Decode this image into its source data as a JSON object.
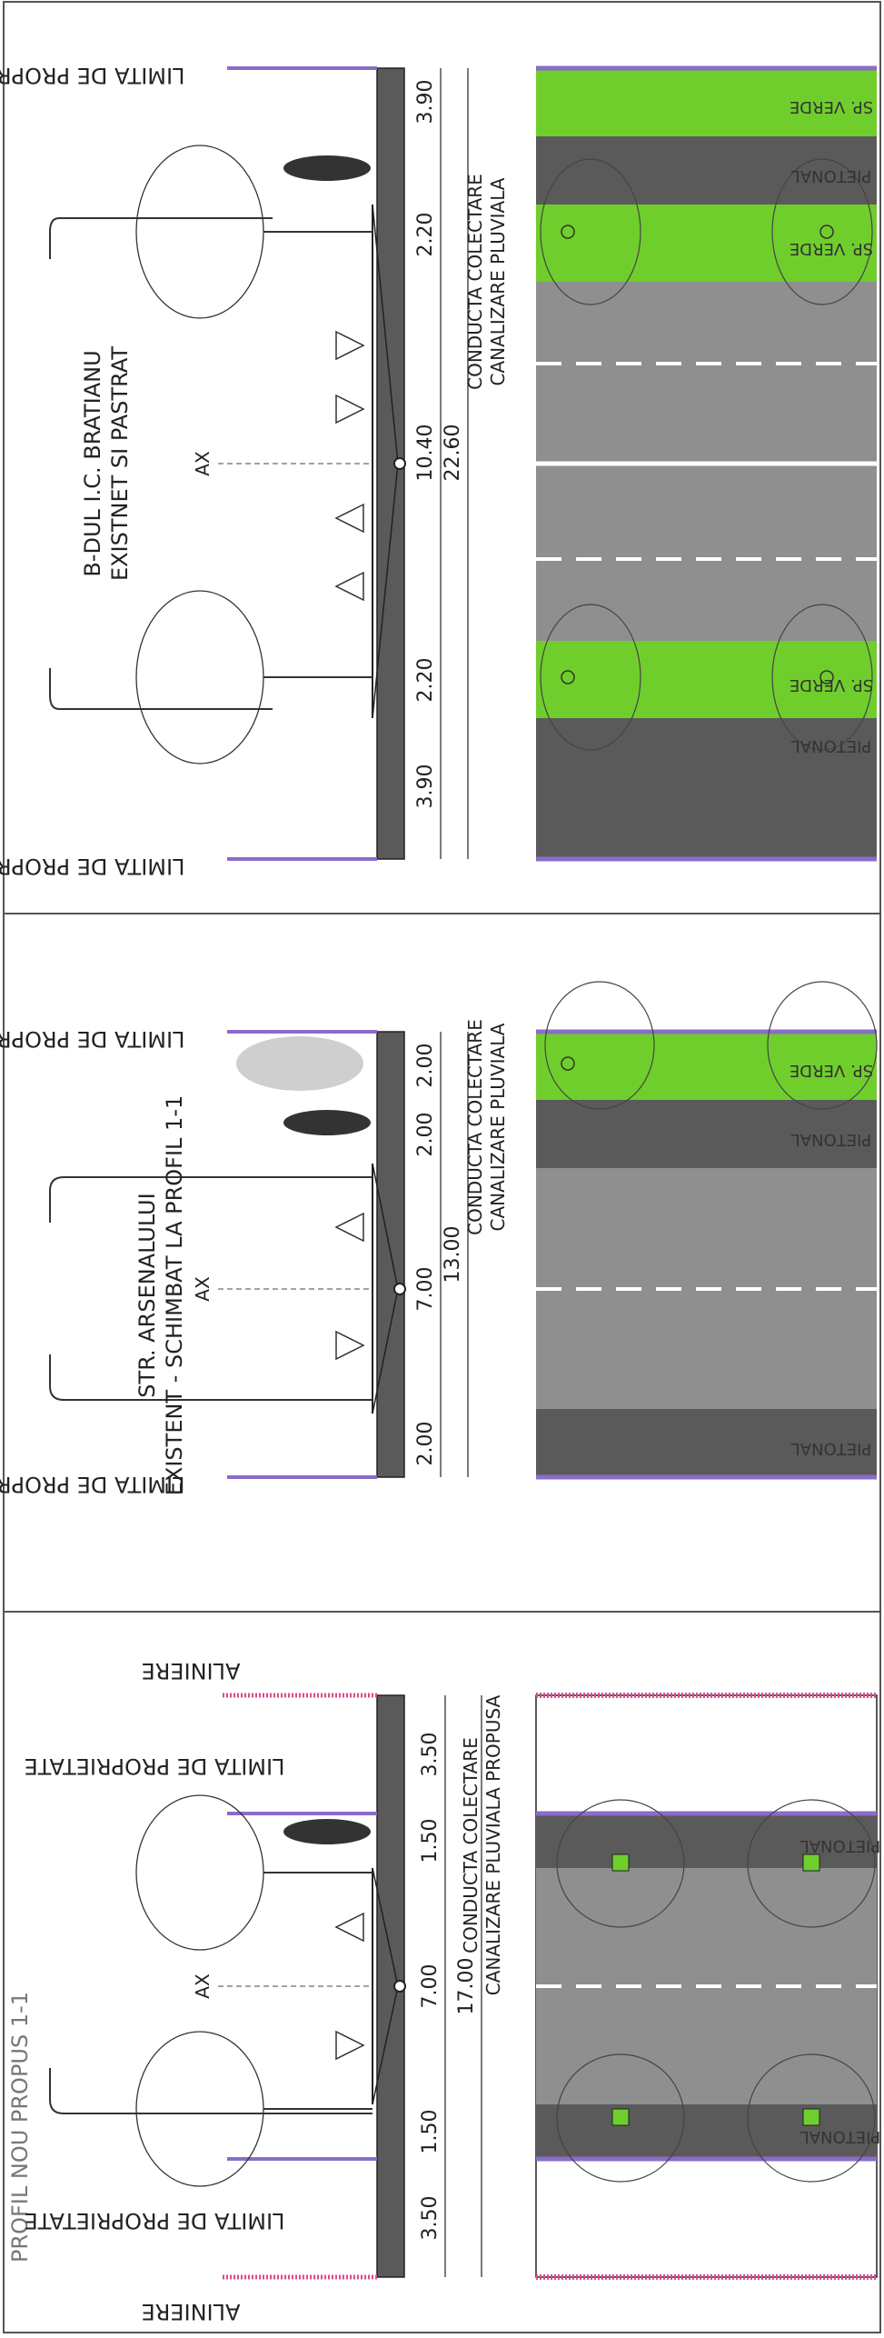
{
  "colors": {
    "road": "#8f8f8f",
    "pavement": "#5a5a5a",
    "grass": "#6fce2c",
    "property_line": "#8a6cc9",
    "alignment_line": "#e04a92",
    "section_dark": "#4a4a4a"
  },
  "panels": [
    {
      "title_lines": [
        "B-DUL I.C. BRATIANU",
        "EXISTNET SI PASTRAT"
      ],
      "axis_label": "AX",
      "property_labels": [
        "LIMITA DE PROPRIETATE",
        "LIMITA DE PROPRIETATE"
      ],
      "drain_label": [
        "CONDUCTA COLECTARE",
        "CANALIZARE PLUVIALA"
      ],
      "widths": [
        "3.90",
        "2.20",
        "10.40",
        "2.20",
        "3.90"
      ],
      "total": "22.60",
      "plan_labels": [
        "SP. VERDE",
        "PIETONAL",
        "SP. VERDE",
        "SP. VERDE",
        "PIETONAL"
      ]
    },
    {
      "title_lines": [
        "STR. ARSENALULUI",
        "EXISTENT - SCHIMBAT LA PROFIL 1-1"
      ],
      "axis_label": "AX",
      "property_labels": [
        "LIMITA DE PROPRIETATE",
        "LIMITA DE PROPRIETATE"
      ],
      "drain_label": [
        "CONDUCTA COLECTARE",
        "CANALIZARE PLUVIALA"
      ],
      "widths": [
        "2.00",
        "2.00",
        "7.00",
        "2.00"
      ],
      "total": "13.00",
      "plan_labels": [
        "SP. VERDE",
        "PIETONAL",
        "PIETONAL"
      ]
    },
    {
      "title_lines": [
        "PROFIL NOU PROPUS 1-1"
      ],
      "axis_label": "AX",
      "property_labels": [
        "LIMITA DE PROPRIETATE",
        "LIMITA DE PROPRIETATE"
      ],
      "alignment_labels": [
        "ALINIERE",
        "ALINIERE"
      ],
      "drain_label": [
        "CONDUCTA COLECTARE",
        "CANALIZARE PLUVIALA PROPUSA"
      ],
      "widths": [
        "3.50",
        "1.50",
        "7.00",
        "1.50",
        "3.50"
      ],
      "total": "17.00",
      "plan_labels": [
        "PIETONAL",
        "PIETONAL"
      ]
    }
  ]
}
